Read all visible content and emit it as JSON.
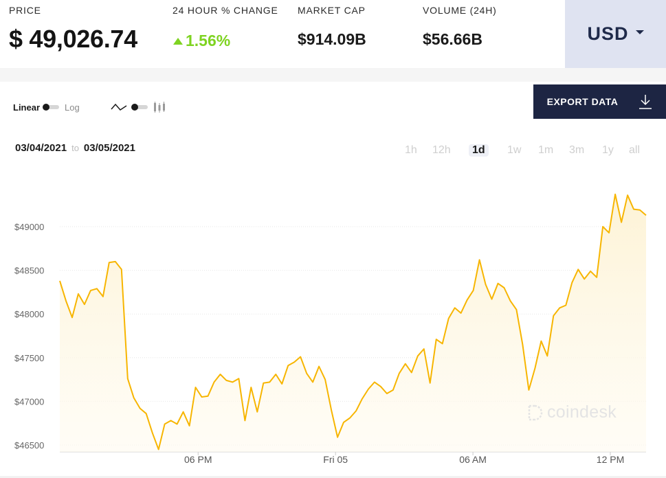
{
  "stats": {
    "price_label": "PRICE",
    "price_value": "$ 49,026.74",
    "change_label": "24 HOUR % CHANGE",
    "change_value": "1.56%",
    "market_cap_label": "MARKET CAP",
    "market_cap_value": "$914.09B",
    "volume_label": "VOLUME (24H)",
    "volume_value": "$56.66B"
  },
  "currency": {
    "label": "USD"
  },
  "controls": {
    "linear_label": "Linear",
    "log_label": "Log",
    "export_label": "EXPORT DATA"
  },
  "date_range": {
    "from": "03/04/2021",
    "sep": "to",
    "to": "03/05/2021"
  },
  "periods": [
    "1h",
    "12h",
    "1d",
    "1w",
    "1m",
    "3m",
    "1y",
    "all"
  ],
  "active_period": "1d",
  "watermark": {
    "text": "coindesk"
  },
  "colors": {
    "line": "#f7b500",
    "fill": "#fdf3d6",
    "positive": "#7ed321",
    "accent": "#1d2543"
  },
  "chart_data": {
    "type": "area",
    "y_ticks": [
      46500,
      47000,
      47500,
      48000,
      48500,
      49000
    ],
    "y_tick_labels": [
      "$46500",
      "$47000",
      "$47500",
      "$48000",
      "$48500",
      "$49000"
    ],
    "x_tick_labels": [
      "06 PM",
      "Fri 05",
      "06 AM",
      "12 PM"
    ],
    "x_ticks": [
      15.1,
      30.1,
      45.1,
      60.1
    ],
    "ylim": [
      46400,
      49700
    ],
    "xlim": [
      0,
      64
    ],
    "grid": true,
    "series": [
      {
        "values": [
          48380,
          48150,
          47960,
          48230,
          48110,
          48270,
          48290,
          48200,
          48590,
          48600,
          48510,
          47260,
          47040,
          46920,
          46860,
          46640,
          46450,
          46740,
          46780,
          46740,
          46880,
          46720,
          47160,
          47050,
          47060,
          47220,
          47310,
          47240,
          47220,
          47260,
          46780,
          47160,
          46880,
          47210,
          47220,
          47310,
          47200,
          47410,
          47450,
          47510,
          47320,
          47220,
          47400,
          47250,
          46900,
          46590,
          46760,
          46810,
          46890,
          47030,
          47140,
          47220,
          47170,
          47090,
          47130,
          47320,
          47430,
          47330,
          47520,
          47600,
          47210,
          47710,
          47660,
          47950,
          48070,
          48010,
          48160,
          48270,
          48620,
          48340,
          48170,
          48350,
          48300,
          48150,
          48050,
          47650,
          47130,
          47380,
          47690,
          47520,
          47980,
          48070,
          48100,
          48360,
          48510,
          48400,
          48490,
          48420,
          49000,
          48930,
          49370,
          49050,
          49360,
          49200,
          49190,
          49130
        ]
      }
    ]
  }
}
